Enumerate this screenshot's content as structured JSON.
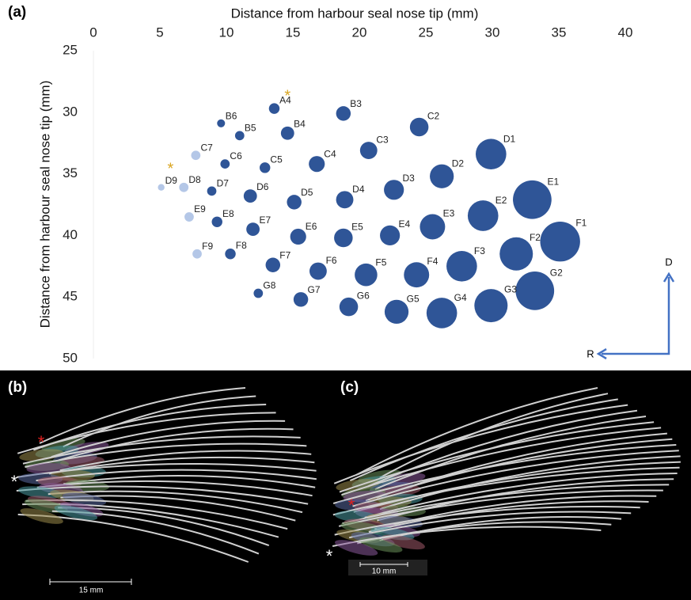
{
  "chart_data": {
    "type": "bubble",
    "panel_label": "(a)",
    "x_label": "Distance from harbour seal nose tip (mm)",
    "y_label": "Distance from harbour seal nose tip (mm)",
    "xlim": [
      0,
      40
    ],
    "xticks": [
      0,
      5,
      10,
      15,
      20,
      25,
      30,
      35,
      40
    ],
    "ylim": [
      25,
      50
    ],
    "yticks": [
      25,
      30,
      35,
      40,
      45,
      50
    ],
    "y_inverted": true,
    "x_axis_top": true,
    "points": [
      {
        "label": "A4",
        "x": 13.6,
        "y": 29.7,
        "size": 0.8,
        "color": "#2f5597"
      },
      {
        "label": "B3",
        "x": 18.8,
        "y": 30.1,
        "size": 1.1,
        "color": "#2f5597"
      },
      {
        "label": "B4",
        "x": 14.6,
        "y": 31.7,
        "size": 1.0,
        "color": "#2f5597"
      },
      {
        "label": "B5",
        "x": 11.0,
        "y": 31.9,
        "size": 0.7,
        "color": "#2f5597"
      },
      {
        "label": "B6",
        "x": 9.6,
        "y": 30.9,
        "size": 0.6,
        "color": "#2f5597"
      },
      {
        "label": "C2",
        "x": 24.5,
        "y": 31.2,
        "size": 1.4,
        "color": "#2f5597"
      },
      {
        "label": "C3",
        "x": 20.7,
        "y": 33.1,
        "size": 1.3,
        "color": "#2f5597"
      },
      {
        "label": "C4",
        "x": 16.8,
        "y": 34.2,
        "size": 1.2,
        "color": "#2f5597"
      },
      {
        "label": "C5",
        "x": 12.9,
        "y": 34.5,
        "size": 0.8,
        "color": "#2f5597"
      },
      {
        "label": "C6",
        "x": 9.9,
        "y": 34.2,
        "size": 0.7,
        "color": "#2f5597"
      },
      {
        "label": "C7",
        "x": 7.7,
        "y": 33.5,
        "size": 0.7,
        "color": "#b4c7e7"
      },
      {
        "label": "D1",
        "x": 29.9,
        "y": 33.4,
        "size": 2.3,
        "color": "#2f5597"
      },
      {
        "label": "D2",
        "x": 26.2,
        "y": 35.2,
        "size": 1.8,
        "color": "#2f5597"
      },
      {
        "label": "D3",
        "x": 22.6,
        "y": 36.3,
        "size": 1.5,
        "color": "#2f5597"
      },
      {
        "label": "D4",
        "x": 18.9,
        "y": 37.1,
        "size": 1.3,
        "color": "#2f5597"
      },
      {
        "label": "D5",
        "x": 15.1,
        "y": 37.3,
        "size": 1.1,
        "color": "#2f5597"
      },
      {
        "label": "D6",
        "x": 11.8,
        "y": 36.8,
        "size": 1.0,
        "color": "#2f5597"
      },
      {
        "label": "D7",
        "x": 8.9,
        "y": 36.4,
        "size": 0.7,
        "color": "#2f5597"
      },
      {
        "label": "D8",
        "x": 6.8,
        "y": 36.1,
        "size": 0.7,
        "color": "#b4c7e7"
      },
      {
        "label": "D9",
        "x": 5.1,
        "y": 36.1,
        "size": 0.5,
        "color": "#b4c7e7"
      },
      {
        "label": "E1",
        "x": 33.0,
        "y": 37.1,
        "size": 2.9,
        "color": "#2f5597"
      },
      {
        "label": "E2",
        "x": 29.3,
        "y": 38.4,
        "size": 2.3,
        "color": "#2f5597"
      },
      {
        "label": "E3",
        "x": 25.5,
        "y": 39.3,
        "size": 1.9,
        "color": "#2f5597"
      },
      {
        "label": "E4",
        "x": 22.3,
        "y": 40.0,
        "size": 1.5,
        "color": "#2f5597"
      },
      {
        "label": "E5",
        "x": 18.8,
        "y": 40.2,
        "size": 1.4,
        "color": "#2f5597"
      },
      {
        "label": "E6",
        "x": 15.4,
        "y": 40.1,
        "size": 1.2,
        "color": "#2f5597"
      },
      {
        "label": "E7",
        "x": 12.0,
        "y": 39.5,
        "size": 1.0,
        "color": "#2f5597"
      },
      {
        "label": "E8",
        "x": 9.3,
        "y": 38.9,
        "size": 0.8,
        "color": "#2f5597"
      },
      {
        "label": "E9",
        "x": 7.2,
        "y": 38.5,
        "size": 0.7,
        "color": "#b4c7e7"
      },
      {
        "label": "F1",
        "x": 35.1,
        "y": 40.5,
        "size": 3.0,
        "color": "#2f5597"
      },
      {
        "label": "F2",
        "x": 31.8,
        "y": 41.5,
        "size": 2.5,
        "color": "#2f5597"
      },
      {
        "label": "F3",
        "x": 27.7,
        "y": 42.5,
        "size": 2.3,
        "color": "#2f5597"
      },
      {
        "label": "F4",
        "x": 24.3,
        "y": 43.2,
        "size": 1.9,
        "color": "#2f5597"
      },
      {
        "label": "F5",
        "x": 20.5,
        "y": 43.2,
        "size": 1.7,
        "color": "#2f5597"
      },
      {
        "label": "F6",
        "x": 16.9,
        "y": 42.9,
        "size": 1.3,
        "color": "#2f5597"
      },
      {
        "label": "F7",
        "x": 13.5,
        "y": 42.4,
        "size": 1.1,
        "color": "#2f5597"
      },
      {
        "label": "F8",
        "x": 10.3,
        "y": 41.5,
        "size": 0.8,
        "color": "#2f5597"
      },
      {
        "label": "F9",
        "x": 7.8,
        "y": 41.5,
        "size": 0.7,
        "color": "#b4c7e7"
      },
      {
        "label": "G2",
        "x": 33.2,
        "y": 44.5,
        "size": 2.9,
        "color": "#2f5597"
      },
      {
        "label": "G3",
        "x": 29.9,
        "y": 45.7,
        "size": 2.5,
        "color": "#2f5597"
      },
      {
        "label": "G4",
        "x": 26.2,
        "y": 46.3,
        "size": 2.3,
        "color": "#2f5597"
      },
      {
        "label": "G5",
        "x": 22.8,
        "y": 46.2,
        "size": 1.8,
        "color": "#2f5597"
      },
      {
        "label": "G6",
        "x": 19.2,
        "y": 45.8,
        "size": 1.4,
        "color": "#2f5597"
      },
      {
        "label": "G7",
        "x": 15.6,
        "y": 45.2,
        "size": 1.1,
        "color": "#2f5597"
      },
      {
        "label": "G8",
        "x": 12.4,
        "y": 44.7,
        "size": 0.7,
        "color": "#2f5597"
      }
    ],
    "annotations": [
      {
        "text": "*",
        "x": 14.6,
        "y": 28.5,
        "color": "#d9a520"
      },
      {
        "text": "*",
        "x": 5.8,
        "y": 34.4,
        "color": "#d9a520"
      }
    ]
  },
  "compass": {
    "up": "D",
    "left": "R"
  },
  "panels": [
    {
      "label": "(b)",
      "scale_bar": "15 mm",
      "red_marker": "*",
      "white_marker": "*"
    },
    {
      "label": "(c)",
      "scale_bar": "10 mm",
      "red_marker": "*",
      "white_marker": "*"
    }
  ]
}
